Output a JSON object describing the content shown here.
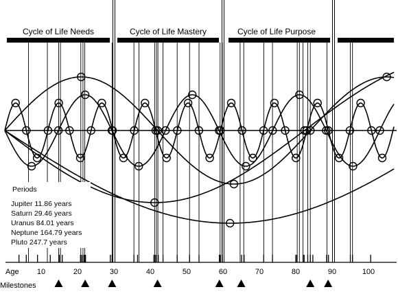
{
  "phases": [
    {
      "label": "Cycle of Life Needs"
    },
    {
      "label": "Cycle of Life Mastery"
    },
    {
      "label": "Cycle of Life Purpose"
    },
    {
      "label": ""
    }
  ],
  "periods": {
    "heading": "Periods",
    "items": [
      {
        "label": "Jupiter 11.86 years",
        "period": 11.86
      },
      {
        "label": "Saturn 29.46 years",
        "period": 29.46
      },
      {
        "label": "Uranus 84.01 years",
        "period": 84.01
      },
      {
        "label": "Neptune 164.79 years",
        "period": 164.79
      },
      {
        "label": "Pluto 247.7 years",
        "period": 247.7
      }
    ]
  },
  "axis": {
    "label": "Age",
    "ticks": [
      "10",
      "20",
      "30",
      "40",
      "50",
      "60",
      "70",
      "80",
      "90",
      "100"
    ],
    "range": [
      0,
      105
    ]
  },
  "milestones": {
    "label": "Milestones",
    "ages": [
      14.8,
      22.1,
      29.5,
      42,
      59,
      65,
      84,
      88.9
    ]
  },
  "chart_data": {
    "type": "line",
    "series": [
      {
        "name": "Jupiter",
        "period": 11.86
      },
      {
        "name": "Saturn",
        "period": 29.46
      },
      {
        "name": "Uranus",
        "period": 84.01
      },
      {
        "name": "Neptune",
        "period": 164.79
      },
      {
        "name": "Pluto",
        "period": 247.7
      }
    ],
    "xlim": [
      0,
      105
    ],
    "age_ticks": [
      3.9,
      5.9,
      9,
      12.5,
      15,
      15.8,
      20.8,
      21.2,
      21.8,
      22.2,
      29,
      29.5,
      35.5,
      36.5,
      41,
      41.5,
      42.2,
      43.5,
      47.4,
      50.8,
      53.4,
      59,
      59.3,
      59.8,
      65.1,
      65.8,
      71.2,
      73.6,
      80,
      80.3,
      82,
      82.3,
      83.3,
      84,
      84.7,
      88.5,
      89,
      95,
      95.6,
      100.6
    ]
  }
}
